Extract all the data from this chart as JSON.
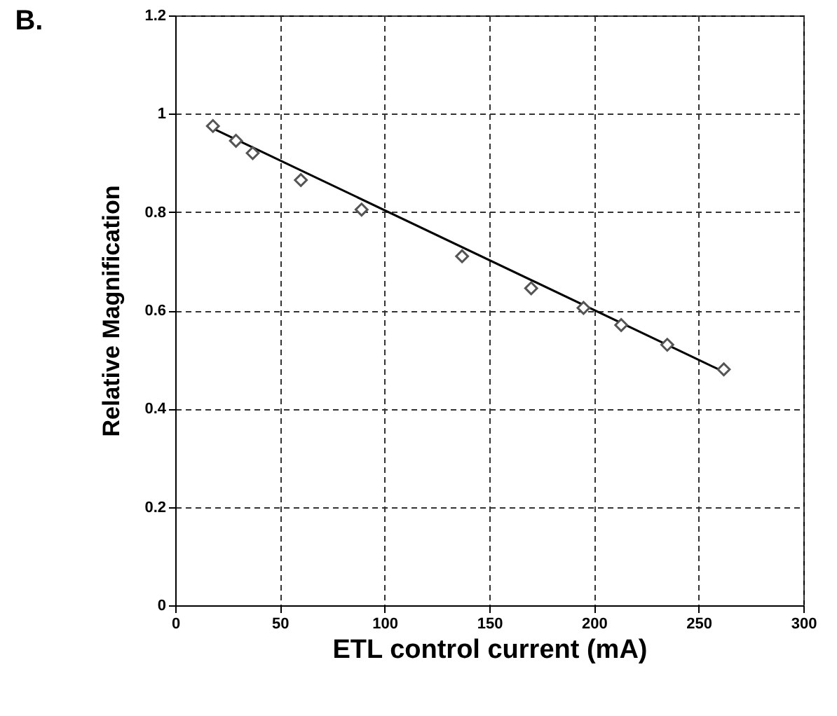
{
  "chart_data": {
    "type": "scatter",
    "title": "B.",
    "xlabel": "ETL control current (mA)",
    "ylabel": "Relative Magnification",
    "xlim": [
      0,
      300
    ],
    "xticks": [
      0,
      50,
      100,
      150,
      200,
      250,
      300
    ],
    "ylim": [
      0,
      1.2
    ],
    "yticks": [
      0,
      0.2,
      0.4,
      0.6,
      0.8,
      1,
      1.2
    ],
    "grid": true,
    "series": [
      {
        "marker": "diamond",
        "color": "#555555",
        "x": [
          18,
          29,
          37,
          60,
          89,
          137,
          170,
          195,
          213,
          235,
          262
        ],
        "values": [
          0.975,
          0.945,
          0.92,
          0.865,
          0.805,
          0.71,
          0.645,
          0.605,
          0.57,
          0.53,
          0.48
        ]
      },
      {
        "type": "line",
        "line_style": "solid",
        "color": "#000000",
        "x": [
          18,
          262
        ],
        "values": [
          0.97,
          0.475
        ]
      }
    ]
  }
}
